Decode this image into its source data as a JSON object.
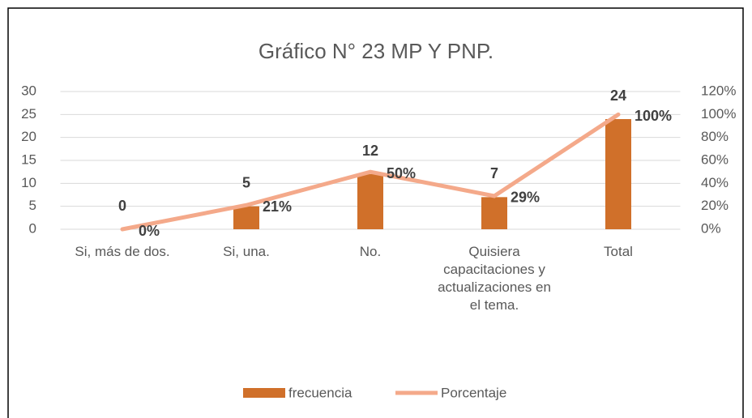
{
  "chart_data": {
    "type": "bar",
    "title": "Gráfico N° 23 MP Y PNP.",
    "categories": [
      "Si, más de dos.",
      "Si, una.",
      "No.",
      "Quisiera capacitaciones y actualizaciones en el tema.",
      "Total"
    ],
    "series": [
      {
        "name": "frecuencia",
        "type": "bar",
        "color": "#d0702a",
        "values": [
          0,
          5,
          12,
          7,
          24
        ]
      },
      {
        "name": "Porcentaje",
        "type": "line",
        "axis": "y2",
        "color": "#f4a98a",
        "values": [
          0,
          21,
          50,
          29,
          100
        ],
        "value_labels": [
          "0%",
          "21%",
          "50%",
          "29%",
          "100%"
        ]
      }
    ],
    "ylim": [
      0,
      30
    ],
    "yticks": [
      0,
      5,
      10,
      15,
      20,
      25,
      30
    ],
    "y2lim": [
      0,
      120
    ],
    "y2ticks": [
      {
        "value": 0,
        "label": "0%"
      },
      {
        "value": 20,
        "label": "20%"
      },
      {
        "value": 40,
        "label": "40%"
      },
      {
        "value": 60,
        "label": "60%"
      },
      {
        "value": 80,
        "label": "80%"
      },
      {
        "value": 100,
        "label": "100%"
      },
      {
        "value": 120,
        "label": "120%"
      }
    ],
    "legend": "bottom"
  }
}
